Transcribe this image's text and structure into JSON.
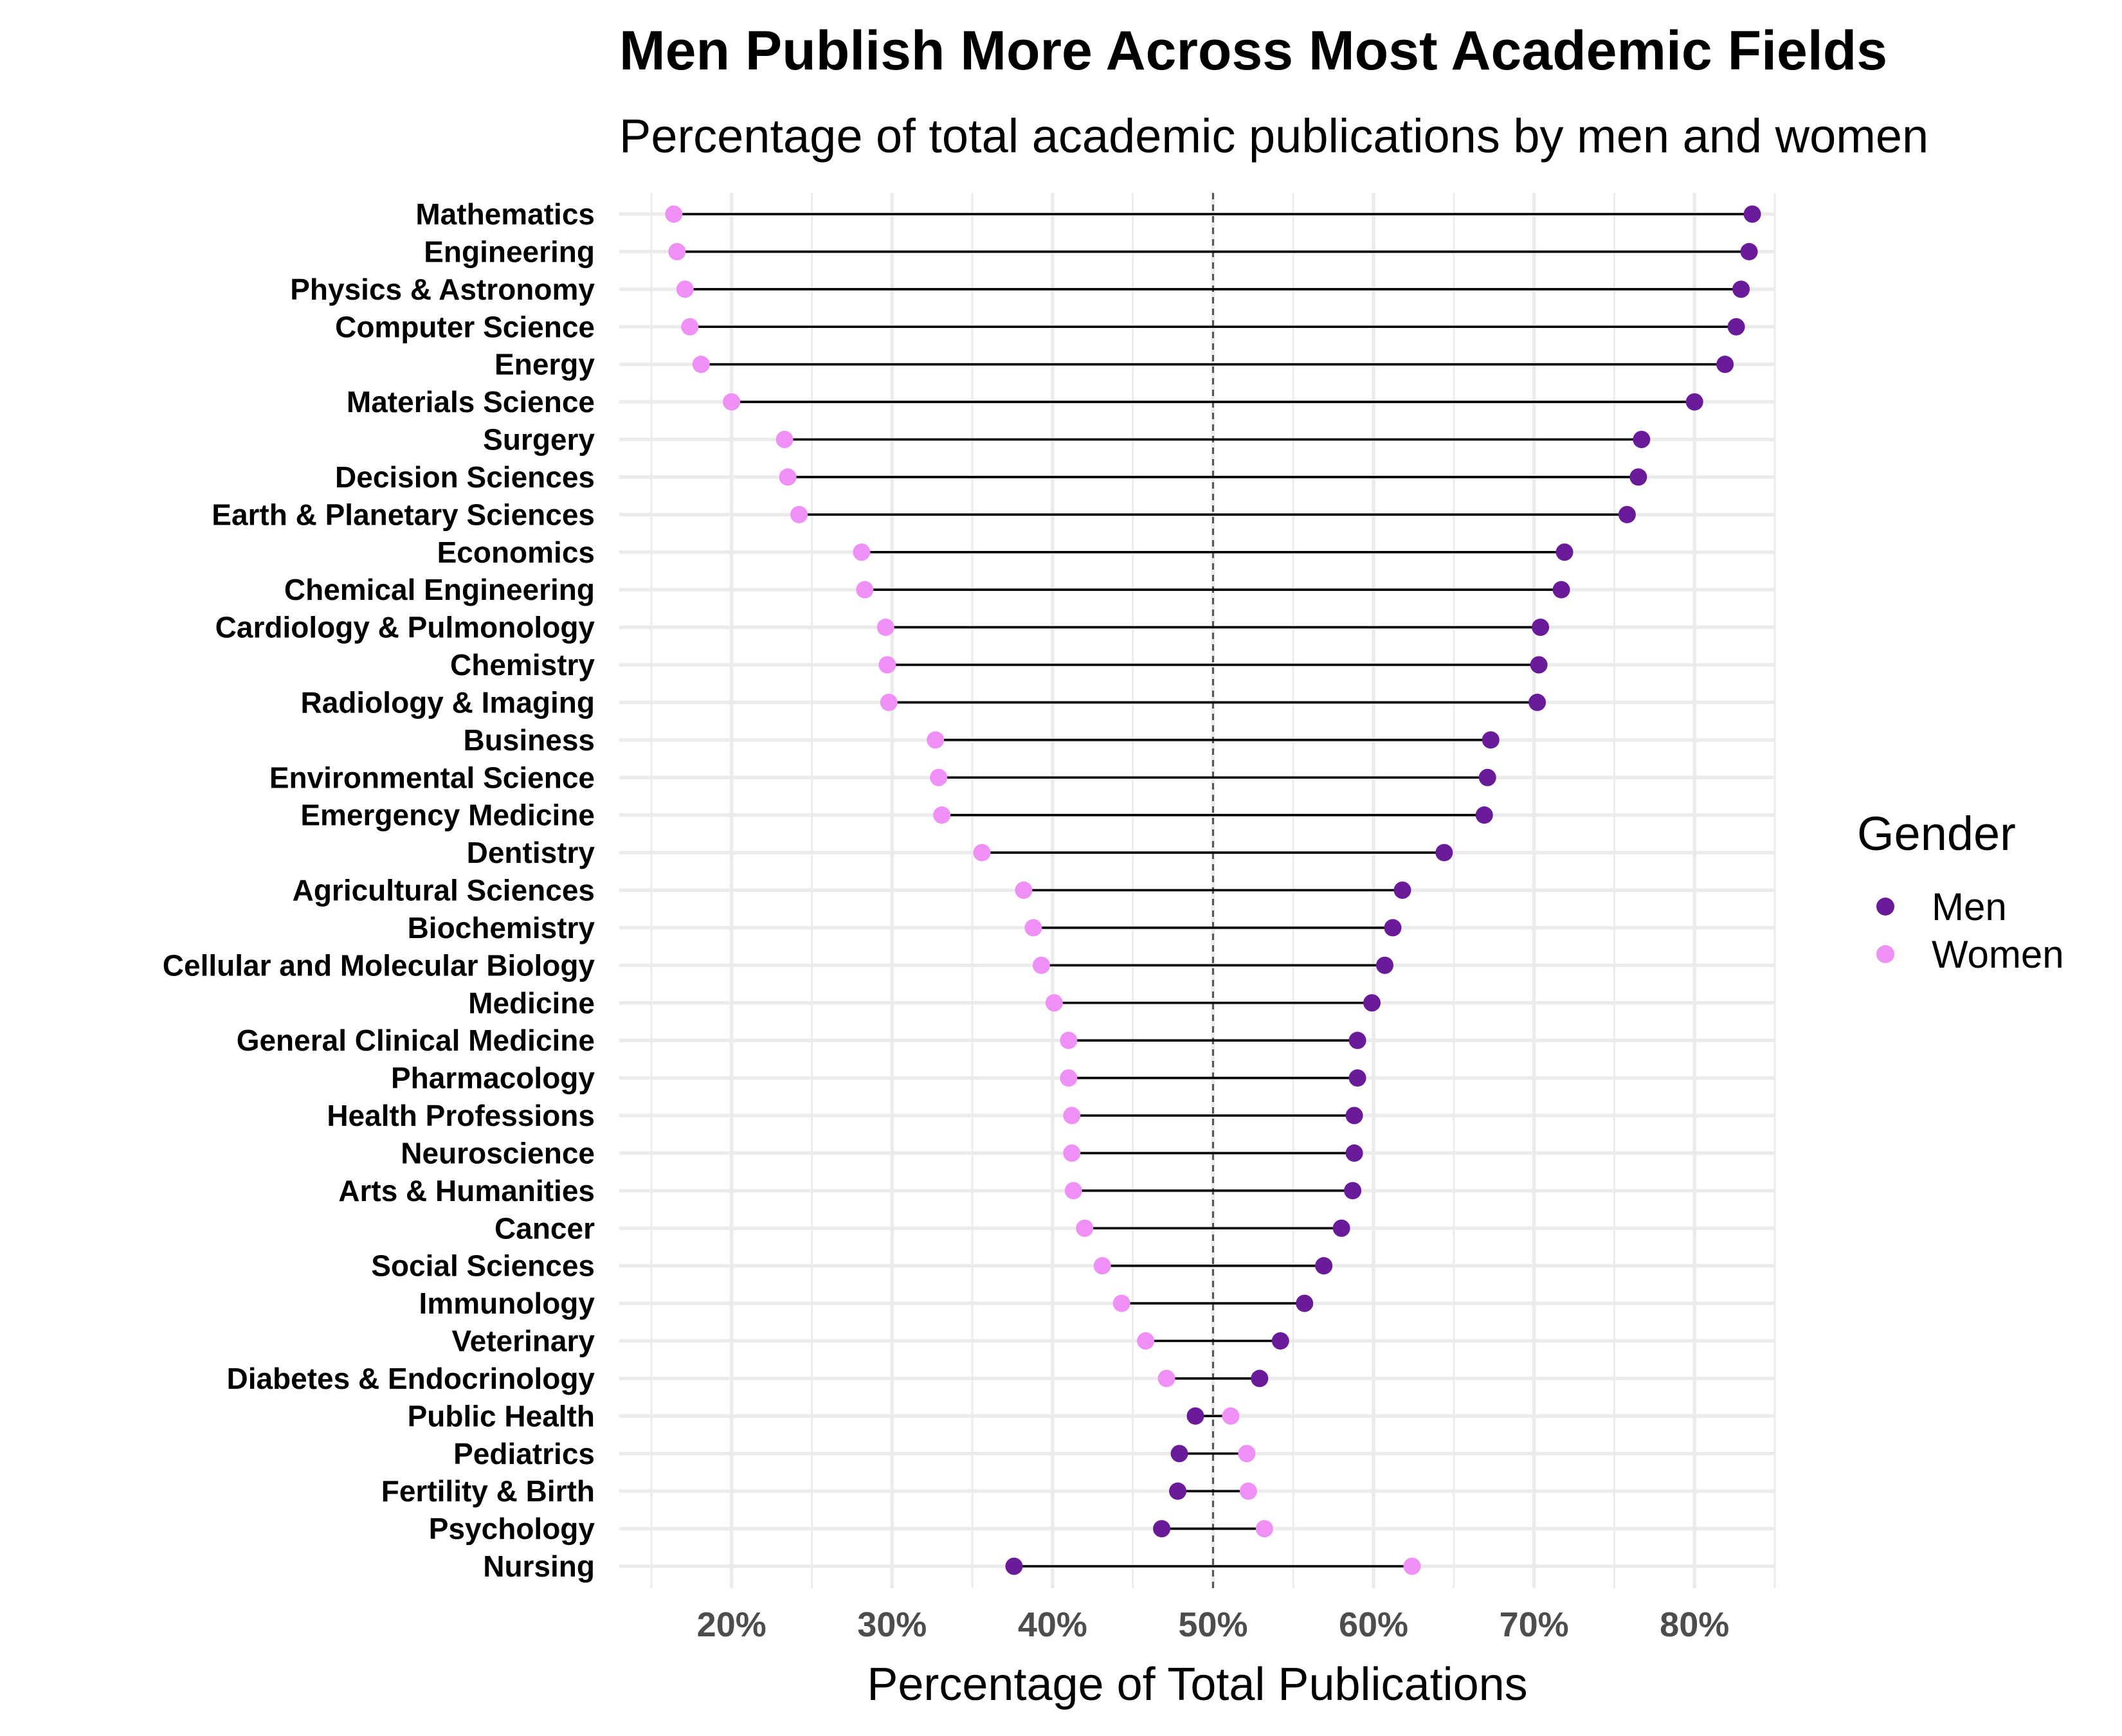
{
  "chart_data": {
    "type": "dumbbell",
    "title": "Men Publish More Across Most Academic Fields",
    "subtitle": "Percentage of total academic publications by men and women",
    "xlabel": "Percentage of Total Publications",
    "ylabel": "",
    "xlim": [
      13,
      85
    ],
    "x_ticks": [
      20,
      30,
      40,
      50,
      60,
      70,
      80
    ],
    "x_tick_labels": [
      "20%",
      "30%",
      "40%",
      "50%",
      "60%",
      "70%",
      "80%"
    ],
    "reference_line": 50,
    "grid": true,
    "legend": {
      "title": "Gender",
      "position": "right",
      "entries": [
        "Men",
        "Women"
      ]
    },
    "colors": {
      "Men": "#6a1b9a",
      "Women": "#ee90f5"
    },
    "categories": [
      "Mathematics",
      "Engineering",
      "Physics & Astronomy",
      "Computer Science",
      "Energy",
      "Materials Science",
      "Surgery",
      "Decision Sciences",
      "Earth & Planetary Sciences",
      "Economics",
      "Chemical Engineering",
      "Cardiology & Pulmonology",
      "Chemistry",
      "Radiology & Imaging",
      "Business",
      "Environmental Science",
      "Emergency Medicine",
      "Dentistry",
      "Agricultural Sciences",
      "Biochemistry",
      "Cellular and Molecular Biology",
      "Medicine",
      "General Clinical Medicine",
      "Pharmacology",
      "Health Professions",
      "Neuroscience",
      "Arts & Humanities",
      "Cancer",
      "Social Sciences",
      "Immunology",
      "Veterinary",
      "Diabetes & Endocrinology",
      "Public Health",
      "Pediatrics",
      "Fertility & Birth",
      "Psychology",
      "Nursing"
    ],
    "series": [
      {
        "name": "Men",
        "values": [
          83.6,
          83.4,
          82.9,
          82.6,
          81.9,
          80.0,
          76.7,
          76.5,
          75.8,
          71.9,
          71.7,
          70.4,
          70.3,
          70.2,
          67.3,
          67.1,
          66.9,
          64.4,
          61.8,
          61.2,
          60.7,
          59.9,
          59.0,
          59.0,
          58.8,
          58.8,
          58.7,
          58.0,
          56.9,
          55.7,
          54.2,
          52.9,
          48.9,
          47.9,
          47.8,
          46.8,
          37.6
        ]
      },
      {
        "name": "Women",
        "values": [
          16.4,
          16.6,
          17.1,
          17.4,
          18.1,
          20.0,
          23.3,
          23.5,
          24.2,
          28.1,
          28.3,
          29.6,
          29.7,
          29.8,
          32.7,
          32.9,
          33.1,
          35.6,
          38.2,
          38.8,
          39.3,
          40.1,
          41.0,
          41.0,
          41.2,
          41.2,
          41.3,
          42.0,
          43.1,
          44.3,
          45.8,
          47.1,
          51.1,
          52.1,
          52.2,
          53.2,
          62.4
        ]
      }
    ]
  }
}
